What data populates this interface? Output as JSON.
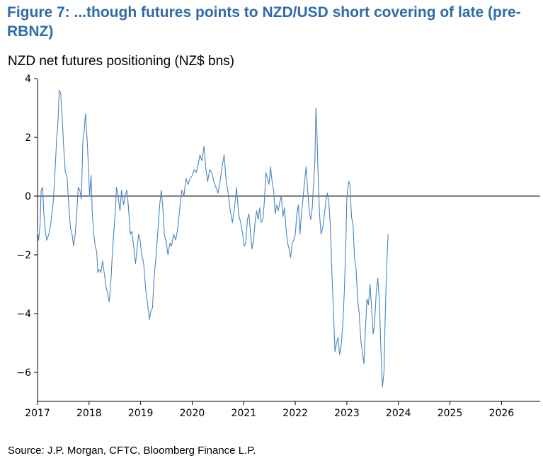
{
  "figure": {
    "title": "Figure 7: ...though futures points to NZD/USD short covering of late (pre-RBNZ)",
    "source": "Source: J.P. Morgan, CFTC, Bloomberg Finance L.P."
  },
  "chart_data": {
    "type": "line",
    "title": "Figure 7: ...though futures points to NZD/USD short covering of late (pre-RBNZ)",
    "subtitle": "NZD net futures positioning (NZ$ bns)",
    "xlabel": "",
    "ylabel": "",
    "x_ticks": [
      "2017",
      "2018",
      "2019",
      "2020",
      "2021",
      "2022",
      "2023",
      "2024",
      "2025",
      "2026"
    ],
    "y_ticks": [
      4,
      2,
      0,
      -2,
      -4,
      -6
    ],
    "xlim": [
      2017.0,
      2026.75
    ],
    "ylim": [
      -7.0,
      4.0
    ],
    "grid": false,
    "reference_line": 0,
    "series": [
      {
        "color": "#4a86bd",
        "points": [
          [
            2017.0,
            -1.2
          ],
          [
            2017.02,
            -1.5
          ],
          [
            2017.05,
            -1.0
          ],
          [
            2017.07,
            0.2
          ],
          [
            2017.1,
            0.3
          ],
          [
            2017.12,
            -0.5
          ],
          [
            2017.15,
            -1.2
          ],
          [
            2017.18,
            -1.5
          ],
          [
            2017.22,
            -1.3
          ],
          [
            2017.26,
            -0.9
          ],
          [
            2017.3,
            -0.3
          ],
          [
            2017.33,
            0.5
          ],
          [
            2017.37,
            1.9
          ],
          [
            2017.4,
            2.6
          ],
          [
            2017.42,
            3.6
          ],
          [
            2017.45,
            3.5
          ],
          [
            2017.48,
            2.6
          ],
          [
            2017.51,
            1.6
          ],
          [
            2017.54,
            0.8
          ],
          [
            2017.57,
            0.7
          ],
          [
            2017.61,
            -0.4
          ],
          [
            2017.64,
            -1.1
          ],
          [
            2017.67,
            -1.3
          ],
          [
            2017.7,
            -1.7
          ],
          [
            2017.73,
            -1.3
          ],
          [
            2017.76,
            -0.6
          ],
          [
            2017.79,
            0.3
          ],
          [
            2017.82,
            0.2
          ],
          [
            2017.85,
            -0.1
          ],
          [
            2017.88,
            1.9
          ],
          [
            2017.9,
            2.1
          ],
          [
            2017.93,
            2.8
          ],
          [
            2017.96,
            2.0
          ],
          [
            2017.99,
            0.9
          ],
          [
            2018.01,
            0.0
          ],
          [
            2018.04,
            0.7
          ],
          [
            2018.06,
            -0.5
          ],
          [
            2018.09,
            -1.3
          ],
          [
            2018.12,
            -1.7
          ],
          [
            2018.15,
            -1.9
          ],
          [
            2018.17,
            -2.6
          ],
          [
            2018.2,
            -2.5
          ],
          [
            2018.23,
            -2.6
          ],
          [
            2018.26,
            -2.2
          ],
          [
            2018.3,
            -2.7
          ],
          [
            2018.33,
            -3.1
          ],
          [
            2018.36,
            -3.3
          ],
          [
            2018.39,
            -3.6
          ],
          [
            2018.42,
            -3.0
          ],
          [
            2018.45,
            -2.0
          ],
          [
            2018.48,
            -1.2
          ],
          [
            2018.51,
            -0.5
          ],
          [
            2018.53,
            0.3
          ],
          [
            2018.57,
            -0.1
          ],
          [
            2018.6,
            -0.5
          ],
          [
            2018.63,
            0.2
          ],
          [
            2018.67,
            -0.3
          ],
          [
            2018.7,
            0.0
          ],
          [
            2018.73,
            0.2
          ],
          [
            2018.76,
            -0.3
          ],
          [
            2018.8,
            -1.3
          ],
          [
            2018.83,
            -1.2
          ],
          [
            2018.87,
            -1.8
          ],
          [
            2018.9,
            -2.3
          ],
          [
            2018.93,
            -1.8
          ],
          [
            2018.96,
            -1.3
          ],
          [
            2018.99,
            -1.5
          ],
          [
            2019.02,
            -2.0
          ],
          [
            2019.06,
            -2.3
          ],
          [
            2019.1,
            -3.2
          ],
          [
            2019.13,
            -3.6
          ],
          [
            2019.17,
            -4.2
          ],
          [
            2019.2,
            -3.9
          ],
          [
            2019.23,
            -3.8
          ],
          [
            2019.26,
            -2.8
          ],
          [
            2019.3,
            -2.0
          ],
          [
            2019.33,
            -1.3
          ],
          [
            2019.37,
            -0.3
          ],
          [
            2019.4,
            0.2
          ],
          [
            2019.43,
            -0.4
          ],
          [
            2019.46,
            -1.3
          ],
          [
            2019.5,
            -1.6
          ],
          [
            2019.53,
            -2.0
          ],
          [
            2019.57,
            -1.6
          ],
          [
            2019.6,
            -1.7
          ],
          [
            2019.64,
            -1.3
          ],
          [
            2019.68,
            -1.5
          ],
          [
            2019.72,
            -1.1
          ],
          [
            2019.76,
            -0.4
          ],
          [
            2019.8,
            0.2
          ],
          [
            2019.84,
            0.0
          ],
          [
            2019.88,
            0.6
          ],
          [
            2019.92,
            0.4
          ],
          [
            2019.96,
            0.6
          ],
          [
            2020.0,
            0.7
          ],
          [
            2020.04,
            0.9
          ],
          [
            2020.08,
            0.8
          ],
          [
            2020.12,
            1.1
          ],
          [
            2020.15,
            1.4
          ],
          [
            2020.19,
            1.2
          ],
          [
            2020.23,
            1.7
          ],
          [
            2020.26,
            1.0
          ],
          [
            2020.3,
            0.5
          ],
          [
            2020.34,
            0.9
          ],
          [
            2020.38,
            0.8
          ],
          [
            2020.42,
            0.5
          ],
          [
            2020.46,
            0.3
          ],
          [
            2020.5,
            0.1
          ],
          [
            2020.54,
            0.5
          ],
          [
            2020.58,
            1.0
          ],
          [
            2020.62,
            1.4
          ],
          [
            2020.66,
            0.5
          ],
          [
            2020.7,
            0.1
          ],
          [
            2020.74,
            -0.5
          ],
          [
            2020.78,
            -0.9
          ],
          [
            2020.82,
            -0.4
          ],
          [
            2020.86,
            0.3
          ],
          [
            2020.9,
            -0.6
          ],
          [
            2020.94,
            -0.9
          ],
          [
            2020.98,
            -1.3
          ],
          [
            2021.01,
            -1.7
          ],
          [
            2021.04,
            -1.6
          ],
          [
            2021.07,
            -0.8
          ],
          [
            2021.1,
            -0.6
          ],
          [
            2021.13,
            -1.2
          ],
          [
            2021.16,
            -1.8
          ],
          [
            2021.19,
            -1.5
          ],
          [
            2021.22,
            -0.9
          ],
          [
            2021.25,
            -0.5
          ],
          [
            2021.28,
            -0.8
          ],
          [
            2021.31,
            -0.4
          ],
          [
            2021.34,
            -0.9
          ],
          [
            2021.37,
            -0.8
          ],
          [
            2021.4,
            -0.2
          ],
          [
            2021.43,
            0.8
          ],
          [
            2021.46,
            0.6
          ],
          [
            2021.49,
            0.4
          ],
          [
            2021.52,
            1.0
          ],
          [
            2021.55,
            0.5
          ],
          [
            2021.58,
            0.2
          ],
          [
            2021.61,
            -0.6
          ],
          [
            2021.64,
            -0.3
          ],
          [
            2021.67,
            -0.5
          ],
          [
            2021.7,
            -0.2
          ],
          [
            2021.73,
            0.0
          ],
          [
            2021.76,
            -0.7
          ],
          [
            2021.79,
            -0.4
          ],
          [
            2021.82,
            -1.1
          ],
          [
            2021.85,
            -1.6
          ],
          [
            2021.88,
            -1.8
          ],
          [
            2021.91,
            -2.1
          ],
          [
            2021.94,
            -1.6
          ],
          [
            2021.97,
            -1.5
          ],
          [
            2022.0,
            -1.3
          ],
          [
            2022.03,
            -0.6
          ],
          [
            2022.06,
            -0.3
          ],
          [
            2022.09,
            -1.3
          ],
          [
            2022.12,
            -0.6
          ],
          [
            2022.15,
            -0.1
          ],
          [
            2022.18,
            0.5
          ],
          [
            2022.21,
            1.0
          ],
          [
            2022.24,
            0.2
          ],
          [
            2022.27,
            -0.5
          ],
          [
            2022.3,
            -0.8
          ],
          [
            2022.33,
            -0.4
          ],
          [
            2022.36,
            0.6
          ],
          [
            2022.38,
            1.2
          ],
          [
            2022.4,
            3.0
          ],
          [
            2022.42,
            2.2
          ],
          [
            2022.44,
            0.9
          ],
          [
            2022.47,
            -0.6
          ],
          [
            2022.5,
            -1.3
          ],
          [
            2022.53,
            -1.1
          ],
          [
            2022.56,
            -0.7
          ],
          [
            2022.59,
            -0.2
          ],
          [
            2022.62,
            0.1
          ],
          [
            2022.65,
            -0.2
          ],
          [
            2022.68,
            -1.0
          ],
          [
            2022.71,
            -2.6
          ],
          [
            2022.74,
            -3.9
          ],
          [
            2022.77,
            -5.3
          ],
          [
            2022.8,
            -5.0
          ],
          [
            2022.83,
            -4.8
          ],
          [
            2022.86,
            -5.4
          ],
          [
            2022.89,
            -5.1
          ],
          [
            2022.92,
            -4.4
          ],
          [
            2022.95,
            -3.3
          ],
          [
            2022.98,
            -1.6
          ],
          [
            2023.0,
            -0.1
          ],
          [
            2023.02,
            0.3
          ],
          [
            2023.04,
            0.5
          ],
          [
            2023.06,
            0.4
          ],
          [
            2023.09,
            -0.7
          ],
          [
            2023.12,
            -1.0
          ],
          [
            2023.15,
            -2.1
          ],
          [
            2023.18,
            -2.5
          ],
          [
            2023.21,
            -3.5
          ],
          [
            2023.24,
            -4.0
          ],
          [
            2023.27,
            -4.9
          ],
          [
            2023.3,
            -5.3
          ],
          [
            2023.33,
            -5.7
          ],
          [
            2023.36,
            -4.6
          ],
          [
            2023.39,
            -3.5
          ],
          [
            2023.42,
            -3.7
          ],
          [
            2023.45,
            -3.0
          ],
          [
            2023.48,
            -3.8
          ],
          [
            2023.51,
            -4.7
          ],
          [
            2023.54,
            -4.3
          ],
          [
            2023.57,
            -3.3
          ],
          [
            2023.6,
            -2.8
          ],
          [
            2023.63,
            -3.5
          ],
          [
            2023.66,
            -5.2
          ],
          [
            2023.69,
            -6.5
          ],
          [
            2023.72,
            -6.0
          ],
          [
            2023.74,
            -4.4
          ],
          [
            2023.76,
            -3.1
          ],
          [
            2023.78,
            -2.1
          ],
          [
            2023.8,
            -1.3
          ]
        ]
      }
    ]
  }
}
